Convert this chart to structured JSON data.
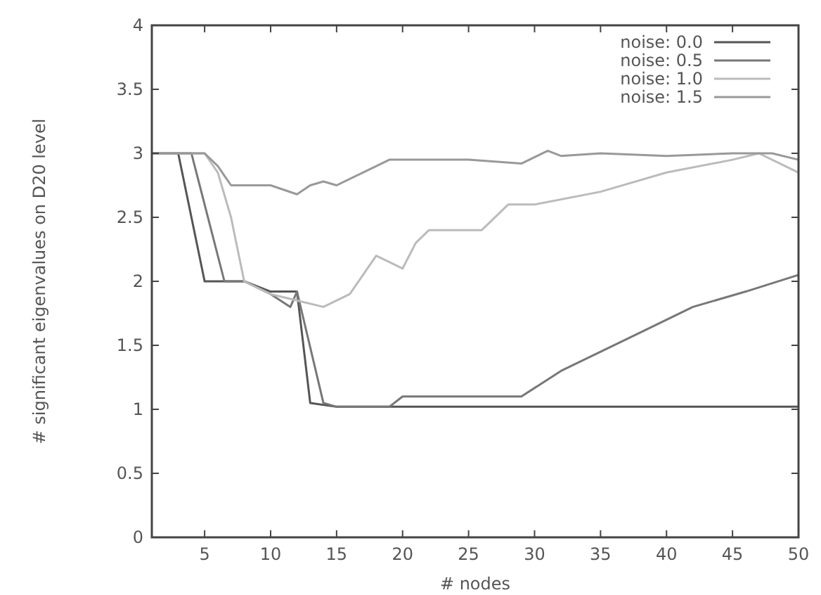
{
  "chart_data": {
    "type": "line",
    "xlabel": "# nodes",
    "ylabel": "# significant eigenvalues on D20 level",
    "xlim": [
      1,
      50
    ],
    "ylim": [
      0,
      4
    ],
    "xticks": [
      5,
      10,
      15,
      20,
      25,
      30,
      35,
      40,
      45,
      50
    ],
    "yticks": [
      0,
      0.5,
      1,
      1.5,
      2,
      2.5,
      3,
      3.5,
      4
    ],
    "legend": "top right",
    "grid": false,
    "line_style": "solid",
    "marker": "none",
    "series": [
      {
        "name": "noise: 0.0",
        "color": "#555555",
        "x": [
          1,
          3,
          5,
          8,
          10,
          12,
          13,
          15,
          20,
          30,
          40,
          50
        ],
        "values": [
          3,
          3,
          2,
          2,
          1.92,
          1.92,
          1.05,
          1.02,
          1.02,
          1.02,
          1.02,
          1.02
        ]
      },
      {
        "name": "noise: 0.5",
        "color": "#777777",
        "x": [
          1,
          4,
          6.5,
          8,
          10,
          11.5,
          12,
          14,
          15,
          19,
          20,
          29,
          32,
          35,
          38,
          42,
          46,
          50
        ],
        "values": [
          3,
          3,
          2,
          2,
          1.9,
          1.8,
          1.92,
          1.05,
          1.02,
          1.02,
          1.1,
          1.1,
          1.3,
          1.45,
          1.6,
          1.8,
          1.92,
          2.05
        ]
      },
      {
        "name": "noise: 1.0",
        "color": "#bbbbbb",
        "x": [
          1,
          5,
          6,
          7,
          8,
          10,
          12,
          14,
          16,
          17,
          18,
          19,
          20,
          21,
          22,
          26,
          28,
          30,
          35,
          40,
          45,
          47,
          50
        ],
        "values": [
          3,
          3,
          2.85,
          2.5,
          2,
          1.9,
          1.85,
          1.8,
          1.9,
          2.05,
          2.2,
          2.15,
          2.1,
          2.3,
          2.4,
          2.4,
          2.6,
          2.6,
          2.7,
          2.85,
          2.95,
          3.0,
          2.85
        ]
      },
      {
        "name": "noise: 1.5",
        "color": "#999999",
        "x": [
          1,
          5,
          6,
          7,
          10,
          12,
          13,
          14,
          15,
          17,
          19,
          25,
          29,
          31,
          32,
          35,
          40,
          45,
          48,
          50
        ],
        "values": [
          3,
          3,
          2.9,
          2.75,
          2.75,
          2.68,
          2.75,
          2.78,
          2.75,
          2.85,
          2.95,
          2.95,
          2.92,
          3.02,
          2.98,
          3.0,
          2.98,
          3.0,
          3.0,
          2.95
        ]
      }
    ]
  }
}
